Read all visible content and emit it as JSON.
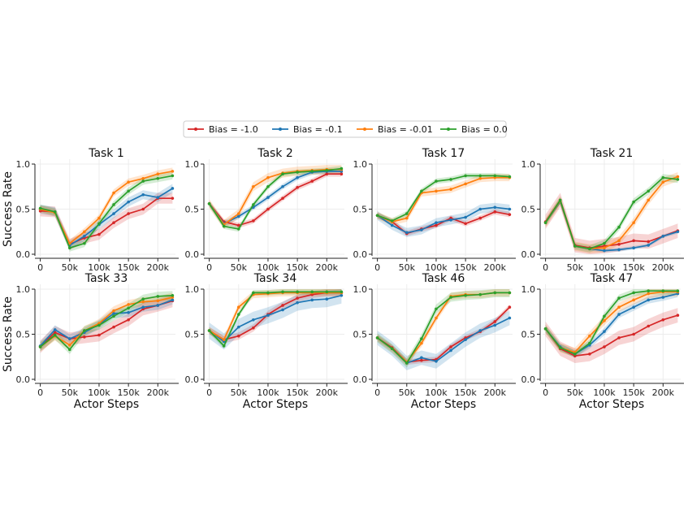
{
  "chart_data": {
    "type": "line",
    "x": [
      0,
      25000,
      50000,
      75000,
      100000,
      125000,
      150000,
      175000,
      200000,
      225000
    ],
    "xticks": [
      0,
      50000,
      100000,
      150000,
      200000
    ],
    "xtick_labels": [
      "0",
      "50k",
      "100k",
      "150k",
      "200k"
    ],
    "xlim": [
      -5000,
      230000
    ],
    "yticks": [
      0.0,
      0.5,
      1.0
    ],
    "ytick_labels": [
      "0.0",
      "0.5",
      "1.0"
    ],
    "ylim": [
      0.0,
      1.0
    ],
    "xlabel": "Actor Steps",
    "ylabel": "Success Rate",
    "grid": true,
    "legend_position": "top-center",
    "series_meta": [
      {
        "name": "Bias = -1.0",
        "color": "#d62728"
      },
      {
        "name": "Bias = -0.1",
        "color": "#1f77b4"
      },
      {
        "name": "Bias = -0.01",
        "color": "#ff7f0e"
      },
      {
        "name": "Bias = 0.0",
        "color": "#2ca02c"
      }
    ],
    "panels": [
      {
        "title": "Task 1",
        "series": [
          {
            "name": "Bias = -1.0",
            "values": [
              0.48,
              0.47,
              0.11,
              0.18,
              0.22,
              0.35,
              0.45,
              0.5,
              0.62,
              0.62
            ],
            "band": 0.06
          },
          {
            "name": "Bias = -0.1",
            "values": [
              0.5,
              0.47,
              0.1,
              0.2,
              0.33,
              0.45,
              0.58,
              0.66,
              0.63,
              0.73
            ],
            "band": 0.05
          },
          {
            "name": "Bias = -0.01",
            "values": [
              0.5,
              0.46,
              0.12,
              0.25,
              0.4,
              0.68,
              0.8,
              0.84,
              0.89,
              0.92
            ],
            "band": 0.04
          },
          {
            "name": "Bias = 0.0",
            "values": [
              0.51,
              0.47,
              0.07,
              0.12,
              0.34,
              0.55,
              0.7,
              0.81,
              0.84,
              0.87
            ],
            "band": 0.04
          }
        ]
      },
      {
        "title": "Task 2",
        "series": [
          {
            "name": "Bias = -1.0",
            "values": [
              0.56,
              0.36,
              0.32,
              0.37,
              0.5,
              0.62,
              0.74,
              0.81,
              0.89,
              0.89
            ],
            "band": 0.03
          },
          {
            "name": "Bias = -0.1",
            "values": [
              0.56,
              0.34,
              0.42,
              0.52,
              0.63,
              0.75,
              0.85,
              0.91,
              0.92,
              0.92
            ],
            "band": 0.03
          },
          {
            "name": "Bias = -0.01",
            "values": [
              0.56,
              0.33,
              0.45,
              0.75,
              0.85,
              0.9,
              0.92,
              0.93,
              0.94,
              0.94
            ],
            "band": 0.05
          },
          {
            "name": "Bias = 0.0",
            "values": [
              0.56,
              0.31,
              0.28,
              0.55,
              0.75,
              0.89,
              0.91,
              0.92,
              0.93,
              0.95
            ],
            "band": 0.03
          }
        ]
      },
      {
        "title": "Task 17",
        "series": [
          {
            "name": "Bias = -1.0",
            "values": [
              0.43,
              0.36,
              0.23,
              0.28,
              0.32,
              0.4,
              0.34,
              0.4,
              0.47,
              0.44
            ],
            "band": 0.03
          },
          {
            "name": "Bias = -0.1",
            "values": [
              0.43,
              0.32,
              0.24,
              0.27,
              0.35,
              0.38,
              0.41,
              0.5,
              0.52,
              0.5
            ],
            "band": 0.05
          },
          {
            "name": "Bias = -0.01",
            "values": [
              0.43,
              0.36,
              0.4,
              0.68,
              0.7,
              0.72,
              0.78,
              0.84,
              0.85,
              0.85
            ],
            "band": 0.04
          },
          {
            "name": "Bias = 0.0",
            "values": [
              0.43,
              0.37,
              0.45,
              0.7,
              0.81,
              0.83,
              0.87,
              0.87,
              0.87,
              0.86
            ],
            "band": 0.03
          }
        ]
      },
      {
        "title": "Task 21",
        "series": [
          {
            "name": "Bias = -1.0",
            "values": [
              0.36,
              0.6,
              0.1,
              0.07,
              0.09,
              0.11,
              0.15,
              0.14,
              0.2,
              0.26
            ],
            "band": 0.08
          },
          {
            "name": "Bias = -0.1",
            "values": [
              0.35,
              0.58,
              0.09,
              0.06,
              0.04,
              0.05,
              0.07,
              0.1,
              0.2,
              0.25
            ],
            "band": 0.02
          },
          {
            "name": "Bias = -0.01",
            "values": [
              0.35,
              0.59,
              0.09,
              0.06,
              0.07,
              0.15,
              0.35,
              0.6,
              0.8,
              0.86
            ],
            "band": 0.05
          },
          {
            "name": "Bias = 0.0",
            "values": [
              0.35,
              0.6,
              0.09,
              0.06,
              0.12,
              0.3,
              0.58,
              0.7,
              0.85,
              0.83
            ],
            "band": 0.04
          }
        ]
      },
      {
        "title": "Task 33",
        "series": [
          {
            "name": "Bias = -1.0",
            "values": [
              0.36,
              0.52,
              0.45,
              0.47,
              0.49,
              0.58,
              0.66,
              0.78,
              0.82,
              0.87
            ],
            "band": 0.07
          },
          {
            "name": "Bias = -0.1",
            "values": [
              0.37,
              0.55,
              0.45,
              0.52,
              0.61,
              0.73,
              0.74,
              0.8,
              0.82,
              0.88
            ],
            "band": 0.05
          },
          {
            "name": "Bias = -0.01",
            "values": [
              0.36,
              0.48,
              0.38,
              0.54,
              0.62,
              0.76,
              0.83,
              0.86,
              0.87,
              0.91
            ],
            "band": 0.05
          },
          {
            "name": "Bias = 0.0",
            "values": [
              0.36,
              0.49,
              0.33,
              0.54,
              0.6,
              0.7,
              0.79,
              0.89,
              0.92,
              0.93
            ],
            "band": 0.05
          }
        ]
      },
      {
        "title": "Task 34",
        "series": [
          {
            "name": "Bias = -1.0",
            "values": [
              0.54,
              0.44,
              0.48,
              0.57,
              0.72,
              0.82,
              0.9,
              0.94,
              0.96,
              0.96
            ],
            "band": 0.04
          },
          {
            "name": "Bias = -0.1",
            "values": [
              0.54,
              0.42,
              0.58,
              0.66,
              0.71,
              0.77,
              0.85,
              0.88,
              0.89,
              0.93
            ],
            "band": 0.09
          },
          {
            "name": "Bias = -0.01",
            "values": [
              0.54,
              0.44,
              0.8,
              0.94,
              0.95,
              0.96,
              0.96,
              0.96,
              0.96,
              0.96
            ],
            "band": 0.04
          },
          {
            "name": "Bias = 0.0",
            "values": [
              0.54,
              0.37,
              0.72,
              0.96,
              0.96,
              0.97,
              0.97,
              0.97,
              0.97,
              0.97
            ],
            "band": 0.03
          }
        ]
      },
      {
        "title": "Task 46",
        "series": [
          {
            "name": "Bias = -1.0",
            "values": [
              0.46,
              0.35,
              0.19,
              0.21,
              0.22,
              0.36,
              0.46,
              0.53,
              0.64,
              0.8
            ],
            "band": 0.03
          },
          {
            "name": "Bias = -0.1",
            "values": [
              0.46,
              0.34,
              0.18,
              0.24,
              0.2,
              0.32,
              0.44,
              0.54,
              0.6,
              0.68
            ],
            "band": 0.08
          },
          {
            "name": "Bias = -0.01",
            "values": [
              0.46,
              0.34,
              0.19,
              0.4,
              0.68,
              0.92,
              0.94,
              0.94,
              0.96,
              0.96
            ],
            "band": 0.04
          },
          {
            "name": "Bias = 0.0",
            "values": [
              0.46,
              0.34,
              0.18,
              0.45,
              0.78,
              0.91,
              0.93,
              0.94,
              0.96,
              0.96
            ],
            "band": 0.05
          }
        ]
      },
      {
        "title": "Task 47",
        "series": [
          {
            "name": "Bias = -1.0",
            "values": [
              0.56,
              0.34,
              0.26,
              0.28,
              0.36,
              0.46,
              0.5,
              0.59,
              0.66,
              0.71
            ],
            "band": 0.08
          },
          {
            "name": "Bias = -0.1",
            "values": [
              0.56,
              0.36,
              0.28,
              0.38,
              0.53,
              0.72,
              0.8,
              0.88,
              0.91,
              0.95
            ],
            "band": 0.04
          },
          {
            "name": "Bias = -0.01",
            "values": [
              0.56,
              0.35,
              0.3,
              0.48,
              0.65,
              0.8,
              0.88,
              0.95,
              0.97,
              0.97
            ],
            "band": 0.05
          },
          {
            "name": "Bias = 0.0",
            "values": [
              0.56,
              0.35,
              0.28,
              0.4,
              0.7,
              0.9,
              0.96,
              0.98,
              0.98,
              0.98
            ],
            "band": 0.04
          }
        ]
      }
    ]
  }
}
